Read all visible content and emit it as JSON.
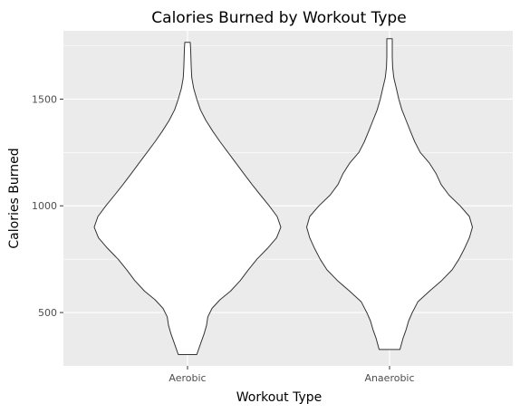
{
  "chart_data": {
    "type": "violin",
    "title": "Calories Burned by Workout Type",
    "xlabel": "Workout Type",
    "ylabel": "Calories Burned",
    "categories": [
      "Aerobic",
      "Anaerobic"
    ],
    "ylim": [
      250,
      1820
    ],
    "yticks": [
      500,
      1000,
      1500
    ],
    "grid": true,
    "legend": "none",
    "colors": {
      "panel": "#ebebeb",
      "grid": "#ffffff",
      "fill": "#ffffff",
      "outline": "#333333"
    },
    "violins": [
      {
        "category": "Aerobic",
        "min": 303,
        "max": 1766,
        "profile": [
          [
            303,
            0.15
          ],
          [
            360,
            0.22
          ],
          [
            400,
            0.27
          ],
          [
            440,
            0.31
          ],
          [
            480,
            0.33
          ],
          [
            520,
            0.4
          ],
          [
            560,
            0.53
          ],
          [
            600,
            0.7
          ],
          [
            650,
            0.86
          ],
          [
            700,
            0.99
          ],
          [
            750,
            1.13
          ],
          [
            800,
            1.3
          ],
          [
            850,
            1.45
          ],
          [
            900,
            1.52
          ],
          [
            950,
            1.46
          ],
          [
            1000,
            1.33
          ],
          [
            1050,
            1.19
          ],
          [
            1100,
            1.05
          ],
          [
            1150,
            0.92
          ],
          [
            1200,
            0.79
          ],
          [
            1250,
            0.66
          ],
          [
            1300,
            0.53
          ],
          [
            1350,
            0.41
          ],
          [
            1400,
            0.3
          ],
          [
            1450,
            0.21
          ],
          [
            1500,
            0.15
          ],
          [
            1550,
            0.1
          ],
          [
            1600,
            0.07
          ],
          [
            1650,
            0.06
          ],
          [
            1700,
            0.055
          ],
          [
            1740,
            0.05
          ],
          [
            1766,
            0.045
          ]
        ]
      },
      {
        "category": "Anaerobic",
        "min": 327,
        "max": 1783,
        "profile": [
          [
            327,
            0.17
          ],
          [
            380,
            0.22
          ],
          [
            420,
            0.27
          ],
          [
            460,
            0.31
          ],
          [
            500,
            0.37
          ],
          [
            550,
            0.46
          ],
          [
            600,
            0.65
          ],
          [
            650,
            0.85
          ],
          [
            700,
            1.02
          ],
          [
            750,
            1.13
          ],
          [
            800,
            1.22
          ],
          [
            850,
            1.3
          ],
          [
            900,
            1.35
          ],
          [
            950,
            1.3
          ],
          [
            1000,
            1.15
          ],
          [
            1050,
            0.97
          ],
          [
            1100,
            0.84
          ],
          [
            1150,
            0.76
          ],
          [
            1200,
            0.65
          ],
          [
            1250,
            0.5
          ],
          [
            1300,
            0.41
          ],
          [
            1350,
            0.34
          ],
          [
            1400,
            0.27
          ],
          [
            1450,
            0.2
          ],
          [
            1500,
            0.15
          ],
          [
            1550,
            0.11
          ],
          [
            1600,
            0.07
          ],
          [
            1650,
            0.05
          ],
          [
            1700,
            0.045
          ],
          [
            1750,
            0.045
          ],
          [
            1783,
            0.045
          ]
        ]
      }
    ]
  }
}
